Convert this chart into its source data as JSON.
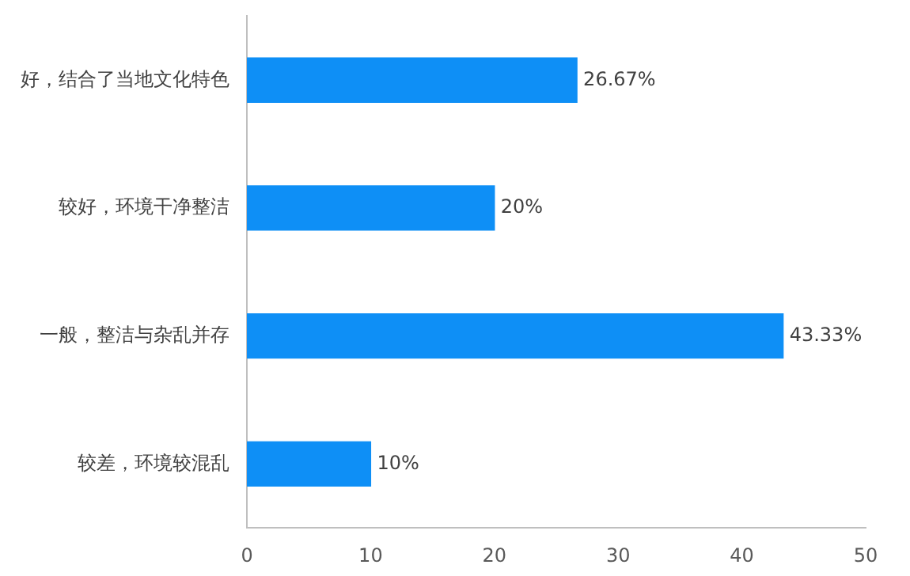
{
  "chart_data": {
    "type": "bar",
    "orientation": "horizontal",
    "categories": [
      "好，结合了当地文化特色",
      "较好，环境干净整洁",
      "一般，整洁与杂乱并存",
      "较差，环境较混乱"
    ],
    "values": [
      26.67,
      20,
      43.33,
      10
    ],
    "value_labels": [
      "26.67%",
      "20%",
      "43.33%",
      "10%"
    ],
    "color": "#0e8ff6",
    "xlim": [
      0,
      50
    ],
    "xticks": [
      0,
      10,
      20,
      30,
      40,
      50
    ],
    "grid": false,
    "legend": false
  }
}
